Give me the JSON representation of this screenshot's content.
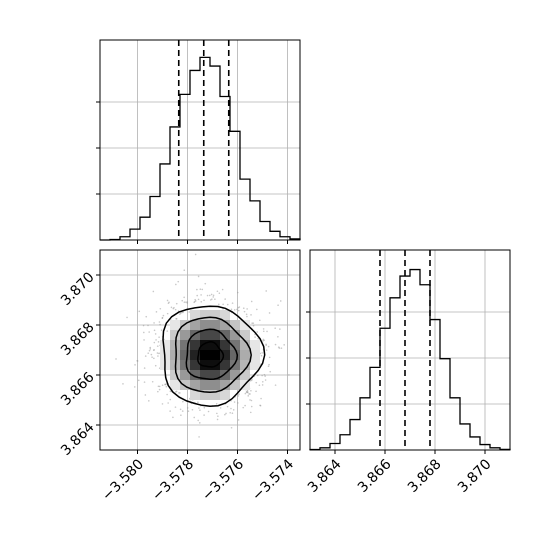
{
  "chart_data": {
    "type": "corner",
    "grid": true,
    "colors": {
      "line": "#000000",
      "grid": "#b0b0b0",
      "background": "#ffffff"
    },
    "panels": [
      {
        "panel": "histogram-param-1",
        "type": "histogram",
        "xlim": [
          -3.5815,
          -3.5735
        ],
        "x_ticks": [
          -3.58,
          -3.578,
          -3.576,
          -3.574
        ],
        "x_tick_labels": [
          "−3.580",
          "−3.578",
          "−3.576",
          "−3.574"
        ],
        "show_tick_labels": false,
        "bin_edges": [
          -3.5815,
          -3.5811,
          -3.5807,
          -3.5803,
          -3.5799,
          -3.5795,
          -3.5791,
          -3.5787,
          -3.5783,
          -3.5779,
          -3.5775,
          -3.5771,
          -3.5767,
          -3.5763,
          -3.5759,
          -3.5755,
          -3.5751,
          -3.5747,
          -3.5743,
          -3.5739,
          -3.5735
        ],
        "counts": [
          0.0,
          0.2,
          1.5,
          5.0,
          10.5,
          20.0,
          35.0,
          52.0,
          67.0,
          78.0,
          84.0,
          80.0,
          66.0,
          50.0,
          28.0,
          18.0,
          8.5,
          4.0,
          1.5,
          0.5
        ],
        "ylim": [
          0,
          92
        ],
        "quantiles": [
          -3.57835,
          -3.57735,
          -3.57635
        ]
      },
      {
        "panel": "scatter-2d",
        "type": "2d-density",
        "xlim": [
          -3.5815,
          -3.5735
        ],
        "ylim": [
          3.863,
          3.871
        ],
        "x_ticks": [
          -3.58,
          -3.578,
          -3.576,
          -3.574
        ],
        "x_tick_labels": [
          "−3.580",
          "−3.578",
          "−3.576",
          "−3.574"
        ],
        "y_ticks": [
          3.864,
          3.866,
          3.868,
          3.87
        ],
        "y_tick_labels": [
          "3.864",
          "3.866",
          "3.868",
          "3.870"
        ],
        "center": [
          -3.5771,
          3.8668
        ],
        "sigma": [
          0.001,
          0.001
        ],
        "contour_levels_sigma": [
          0.5,
          1.0,
          1.5,
          2.0
        ]
      },
      {
        "panel": "histogram-param-2",
        "type": "histogram",
        "xlim": [
          3.863,
          3.871
        ],
        "x_ticks": [
          3.864,
          3.866,
          3.868,
          3.87
        ],
        "x_tick_labels": [
          "3.864",
          "3.866",
          "3.868",
          "3.870"
        ],
        "show_tick_labels": true,
        "bin_edges": [
          3.863,
          3.8634,
          3.8638,
          3.8642,
          3.8646,
          3.865,
          3.8654,
          3.8658,
          3.8662,
          3.8666,
          3.867,
          3.8674,
          3.8678,
          3.8682,
          3.8686,
          3.869,
          3.8694,
          3.8698,
          3.8702,
          3.8706,
          3.871
        ],
        "counts": [
          0.2,
          1.0,
          3.0,
          7.0,
          14.0,
          24.0,
          38.0,
          56.0,
          70.0,
          80.0,
          83.0,
          76.0,
          60.0,
          42.0,
          24.0,
          12.0,
          6.0,
          2.5,
          1.0,
          0.3
        ],
        "ylim": [
          0,
          92
        ],
        "quantiles": [
          3.8658,
          3.8668,
          3.8678
        ]
      }
    ]
  }
}
